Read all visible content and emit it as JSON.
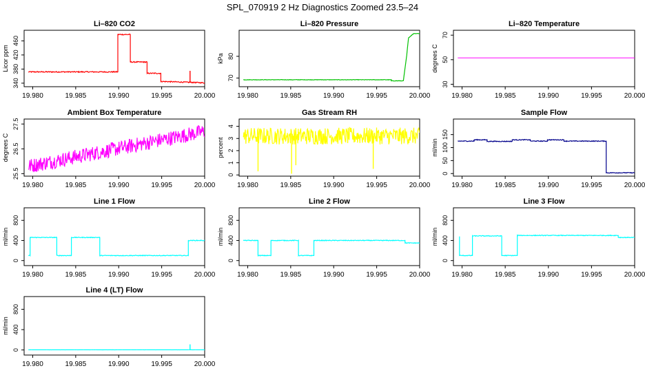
{
  "figure": {
    "title": "SPL_070919  2 Hz Diagnostics Zoomed 23.5–24"
  },
  "chart_data": [
    {
      "type": "line",
      "title": "Li–820 CO2",
      "ylabel": "Licor ppm",
      "xlim": [
        19.979,
        20.0
      ],
      "ylim": [
        330,
        490
      ],
      "x_ticks": [
        "19.980",
        "19.985",
        "19.990",
        "19.995",
        "20.000"
      ],
      "y_ticks": [
        340,
        380,
        420,
        460
      ],
      "color": "#ff0000",
      "noise": 1.5,
      "spikes": [
        [
          19.9983,
          375
        ]
      ],
      "series": [
        {
          "x": [
            19.9795,
            19.9899,
            19.9899,
            19.99135,
            19.99135,
            19.9933,
            19.9933,
            19.9949,
            19.9949,
            20.0
          ],
          "y": [
            372,
            372,
            478,
            478,
            400,
            400,
            368,
            368,
            345,
            341
          ]
        }
      ]
    },
    {
      "type": "line",
      "title": "Li–820 Pressure",
      "ylabel": "kPa",
      "xlim": [
        19.979,
        20.0
      ],
      "ylim": [
        66,
        92
      ],
      "x_ticks": [
        "19.980",
        "19.985",
        "19.990",
        "19.995",
        "20.000"
      ],
      "y_ticks": [
        70,
        80
      ],
      "color": "#00c000",
      "noise": 0.1,
      "series": [
        {
          "x": [
            19.9795,
            19.9967,
            19.9967,
            19.9981,
            19.9985,
            19.9987,
            19.9993,
            20.0
          ],
          "y": [
            69.2,
            69.2,
            68.7,
            68.7,
            80.5,
            88.5,
            90.5,
            90.5
          ]
        }
      ]
    },
    {
      "type": "line",
      "title": "Li–820 Temperature",
      "ylabel": "degrees C",
      "xlim": [
        19.979,
        20.0
      ],
      "ylim": [
        28,
        74
      ],
      "x_ticks": [
        "19.980",
        "19.985",
        "19.990",
        "19.995",
        "20.000"
      ],
      "y_ticks": [
        30,
        50,
        70
      ],
      "color": "#ff00ff",
      "noise": 0,
      "series": [
        {
          "x": [
            19.9795,
            20.0
          ],
          "y": [
            51.5,
            51.5
          ]
        }
      ]
    },
    {
      "type": "line",
      "title": "Ambient Box Temperature",
      "ylabel": "degrees C",
      "xlim": [
        19.979,
        20.0
      ],
      "ylim": [
        25.4,
        27.7
      ],
      "x_ticks": [
        "19.980",
        "19.985",
        "19.990",
        "19.995",
        "20.000"
      ],
      "y_ticks": [
        25.5,
        26.5,
        27.5
      ],
      "color": "#ff00ff",
      "noise": 0.3,
      "series": [
        {
          "x": [
            19.9795,
            20.0
          ],
          "y": [
            25.8,
            27.2
          ]
        }
      ]
    },
    {
      "type": "line",
      "title": "Gas Stream RH",
      "ylabel": "percent",
      "xlim": [
        19.979,
        20.0
      ],
      "ylim": [
        -0.1,
        4.6
      ],
      "x_ticks": [
        "19.980",
        "19.985",
        "19.990",
        "19.995",
        "20.000"
      ],
      "y_ticks": [
        0,
        1,
        2,
        3,
        4
      ],
      "color": "#ffff00",
      "noise": 0.7,
      "spikes": [
        [
          19.9812,
          0.3
        ],
        [
          19.9851,
          0.1
        ],
        [
          19.9856,
          0.8
        ],
        [
          19.9946,
          0.5
        ]
      ],
      "series": [
        {
          "x": [
            19.9795,
            20.0
          ],
          "y": [
            3.2,
            3.2
          ]
        }
      ]
    },
    {
      "type": "line",
      "title": "Sample Flow",
      "ylabel": "ml/min",
      "xlim": [
        19.979,
        20.0
      ],
      "ylim": [
        -10,
        210
      ],
      "x_ticks": [
        "19.980",
        "19.985",
        "19.990",
        "19.995",
        "20.000"
      ],
      "y_ticks": [
        0,
        50,
        100,
        150
      ],
      "color": "#00008b",
      "noise": 1.5,
      "series": [
        {
          "x": [
            19.9795,
            19.9814,
            19.9814,
            19.9829,
            19.9829,
            19.9858,
            19.9858,
            19.9879,
            19.9879,
            19.9899,
            19.9899,
            19.9918,
            19.9918,
            19.9967,
            19.9967,
            20.0
          ],
          "y": [
            125,
            125,
            130,
            130,
            124,
            124,
            130,
            130,
            125,
            125,
            130,
            130,
            125,
            125,
            3,
            3
          ]
        }
      ]
    },
    {
      "type": "line",
      "title": "Line 1 Flow",
      "ylabel": "ml/min",
      "xlim": [
        19.979,
        20.0
      ],
      "ylim": [
        -100,
        1050
      ],
      "x_ticks": [
        "19.980",
        "19.985",
        "19.990",
        "19.995",
        "20.000"
      ],
      "y_ticks": [
        0,
        400,
        800
      ],
      "color": "#00ffff",
      "noise": 7,
      "series": [
        {
          "x": [
            19.9795,
            19.9797,
            19.9797,
            19.9828,
            19.9828,
            19.9845,
            19.9845,
            19.9878,
            19.9878,
            19.9981,
            19.9981,
            20.0
          ],
          "y": [
            100,
            100,
            460,
            460,
            100,
            100,
            460,
            460,
            100,
            100,
            400,
            400
          ]
        }
      ]
    },
    {
      "type": "line",
      "title": "Line 2 Flow",
      "ylabel": "ml/min",
      "xlim": [
        19.979,
        20.0
      ],
      "ylim": [
        -100,
        1050
      ],
      "x_ticks": [
        "19.980",
        "19.985",
        "19.990",
        "19.995",
        "20.000"
      ],
      "y_ticks": [
        0,
        400,
        800
      ],
      "color": "#00ffff",
      "noise": 7,
      "series": [
        {
          "x": [
            19.9795,
            19.9812,
            19.9812,
            19.9827,
            19.9827,
            19.9859,
            19.9859,
            19.9877,
            19.9877,
            19.9983,
            19.9983,
            20.0
          ],
          "y": [
            400,
            400,
            100,
            100,
            400,
            400,
            100,
            100,
            400,
            400,
            350,
            350
          ]
        }
      ]
    },
    {
      "type": "line",
      "title": "Line 3 Flow",
      "ylabel": "ml/min",
      "xlim": [
        19.979,
        20.0
      ],
      "ylim": [
        -100,
        1050
      ],
      "x_ticks": [
        "19.980",
        "19.985",
        "19.990",
        "19.995",
        "20.000"
      ],
      "y_ticks": [
        0,
        400,
        800
      ],
      "color": "#00ffff",
      "noise": 7,
      "series": [
        {
          "x": [
            19.9797,
            19.9797,
            19.9812,
            19.9812,
            19.9846,
            19.9846,
            19.9864,
            19.9864,
            19.9981,
            19.9981,
            20.0
          ],
          "y": [
            480,
            100,
            100,
            490,
            490,
            100,
            100,
            500,
            500,
            460,
            460
          ]
        }
      ]
    },
    {
      "type": "line",
      "title": "Line 4 (LT) Flow",
      "ylabel": "ml/min",
      "xlim": [
        19.979,
        20.0
      ],
      "ylim": [
        -100,
        1050
      ],
      "x_ticks": [
        "19.980",
        "19.985",
        "19.990",
        "19.995",
        "20.000"
      ],
      "y_ticks": [
        0,
        400,
        800
      ],
      "color": "#00ffff",
      "noise": 1,
      "spikes": [
        [
          19.9983,
          110
        ]
      ],
      "series": [
        {
          "x": [
            19.9795,
            20.0
          ],
          "y": [
            3,
            3
          ]
        }
      ]
    }
  ]
}
